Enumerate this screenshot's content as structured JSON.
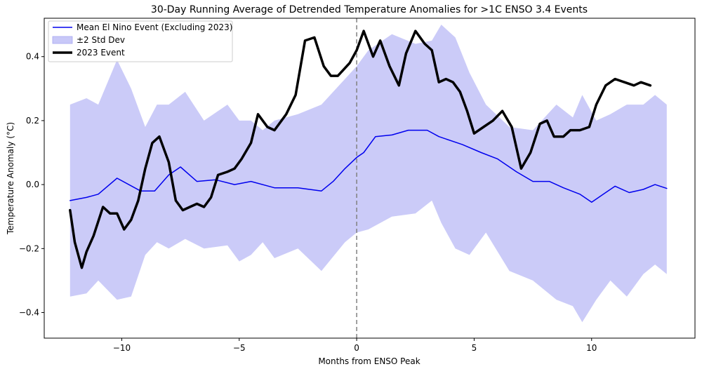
{
  "chart_data": {
    "type": "line",
    "title": "30-Day Running Average of Detrended Temperature Anomalies for >1C ENSO 3.4 Events",
    "xlabel": "Months from ENSO Peak",
    "ylabel": "Temperature Anomaly (°C)",
    "xlim": [
      -13.3,
      14.4
    ],
    "ylim": [
      -0.48,
      0.52
    ],
    "xticks": [
      -10,
      -5,
      0,
      5,
      10
    ],
    "xtick_labels": [
      "−10",
      "−5",
      "0",
      "5",
      "10"
    ],
    "yticks": [
      -0.4,
      -0.2,
      0.0,
      0.2,
      0.4
    ],
    "ytick_labels": [
      "−0.4",
      "−0.2",
      "0.0",
      "0.2",
      "0.4"
    ],
    "grid": false,
    "legend_position": "top-left",
    "vline": {
      "x": 0,
      "style": "dashed",
      "color": "#808080"
    },
    "series": [
      {
        "name": "Mean El Nino Event (Excluding 2023)",
        "kind": "line",
        "color": "#0000ee",
        "x": [
          -12.2,
          -11.5,
          -11.0,
          -10.2,
          -9.2,
          -8.6,
          -8.0,
          -7.5,
          -6.8,
          -6.0,
          -5.2,
          -4.5,
          -3.5,
          -2.5,
          -1.5,
          -1.0,
          -0.5,
          0.0,
          0.3,
          0.8,
          1.5,
          2.2,
          3.0,
          3.5,
          4.5,
          5.3,
          6.0,
          6.8,
          7.5,
          8.2,
          8.8,
          9.5,
          10.0,
          10.5,
          11.0,
          11.6,
          12.2,
          12.7,
          13.2
        ],
        "values": [
          -0.05,
          -0.04,
          -0.03,
          0.02,
          -0.02,
          -0.02,
          0.03,
          0.055,
          0.01,
          0.015,
          0.0,
          0.01,
          -0.01,
          -0.01,
          -0.02,
          0.01,
          0.05,
          0.085,
          0.1,
          0.15,
          0.155,
          0.17,
          0.17,
          0.15,
          0.125,
          0.1,
          0.08,
          0.04,
          0.01,
          0.01,
          -0.01,
          -0.03,
          -0.055,
          -0.03,
          -0.005,
          -0.025,
          -0.015,
          0.0,
          -0.012
        ]
      },
      {
        "name": "±2 Std Dev",
        "kind": "band",
        "color": "#c8c8f8",
        "x": [
          -12.2,
          -11.5,
          -11.0,
          -10.2,
          -9.6,
          -9.0,
          -8.5,
          -8.0,
          -7.3,
          -6.5,
          -5.5,
          -5.0,
          -4.5,
          -4.0,
          -3.5,
          -2.5,
          -1.5,
          -0.5,
          0.0,
          0.5,
          1.5,
          2.5,
          3.2,
          3.6,
          4.2,
          4.8,
          5.5,
          6.5,
          7.5,
          8.5,
          9.2,
          9.6,
          10.2,
          10.8,
          11.5,
          12.2,
          12.7,
          13.2
        ],
        "upper": [
          0.25,
          0.27,
          0.25,
          0.39,
          0.3,
          0.18,
          0.25,
          0.25,
          0.29,
          0.2,
          0.25,
          0.2,
          0.2,
          0.17,
          0.2,
          0.22,
          0.25,
          0.33,
          0.37,
          0.42,
          0.47,
          0.44,
          0.45,
          0.5,
          0.46,
          0.35,
          0.25,
          0.18,
          0.17,
          0.25,
          0.21,
          0.28,
          0.2,
          0.22,
          0.25,
          0.25,
          0.28,
          0.25
        ],
        "lower": [
          -0.35,
          -0.34,
          -0.3,
          -0.36,
          -0.35,
          -0.22,
          -0.18,
          -0.2,
          -0.17,
          -0.2,
          -0.19,
          -0.24,
          -0.22,
          -0.18,
          -0.23,
          -0.2,
          -0.27,
          -0.18,
          -0.15,
          -0.14,
          -0.1,
          -0.09,
          -0.05,
          -0.12,
          -0.2,
          -0.22,
          -0.15,
          -0.27,
          -0.3,
          -0.36,
          -0.38,
          -0.43,
          -0.36,
          -0.3,
          -0.35,
          -0.28,
          -0.25,
          -0.28
        ]
      },
      {
        "name": "2023 Event",
        "kind": "line",
        "color": "#000000",
        "x": [
          -12.2,
          -12.0,
          -11.7,
          -11.5,
          -11.2,
          -10.8,
          -10.5,
          -10.2,
          -9.9,
          -9.6,
          -9.3,
          -9.0,
          -8.7,
          -8.4,
          -8.0,
          -7.7,
          -7.4,
          -7.1,
          -6.8,
          -6.5,
          -6.2,
          -5.9,
          -5.5,
          -5.2,
          -4.9,
          -4.5,
          -4.2,
          -3.8,
          -3.5,
          -3.0,
          -2.6,
          -2.2,
          -1.8,
          -1.4,
          -1.1,
          -0.8,
          -0.3,
          0.0,
          0.3,
          0.7,
          1.0,
          1.4,
          1.8,
          2.1,
          2.5,
          2.9,
          3.2,
          3.5,
          3.8,
          4.1,
          4.4,
          4.7,
          5.0,
          5.4,
          5.8,
          6.2,
          6.6,
          7.0,
          7.4,
          7.8,
          8.1,
          8.4,
          8.8,
          9.1,
          9.5,
          9.9,
          10.2,
          10.6,
          11.0,
          11.4,
          11.8,
          12.1,
          12.5
        ],
        "values": [
          -0.08,
          -0.18,
          -0.26,
          -0.21,
          -0.16,
          -0.07,
          -0.09,
          -0.09,
          -0.14,
          -0.11,
          -0.05,
          0.05,
          0.13,
          0.15,
          0.07,
          -0.05,
          -0.08,
          -0.07,
          -0.06,
          -0.07,
          -0.04,
          0.03,
          0.04,
          0.05,
          0.08,
          0.13,
          0.22,
          0.18,
          0.17,
          0.22,
          0.28,
          0.45,
          0.46,
          0.37,
          0.34,
          0.34,
          0.38,
          0.42,
          0.48,
          0.4,
          0.45,
          0.37,
          0.31,
          0.41,
          0.48,
          0.44,
          0.42,
          0.32,
          0.33,
          0.32,
          0.29,
          0.23,
          0.16,
          0.18,
          0.2,
          0.23,
          0.18,
          0.05,
          0.1,
          0.19,
          0.2,
          0.15,
          0.15,
          0.17,
          0.17,
          0.18,
          0.25,
          0.31,
          0.33,
          0.32,
          0.31,
          0.32,
          0.31
        ]
      }
    ]
  }
}
